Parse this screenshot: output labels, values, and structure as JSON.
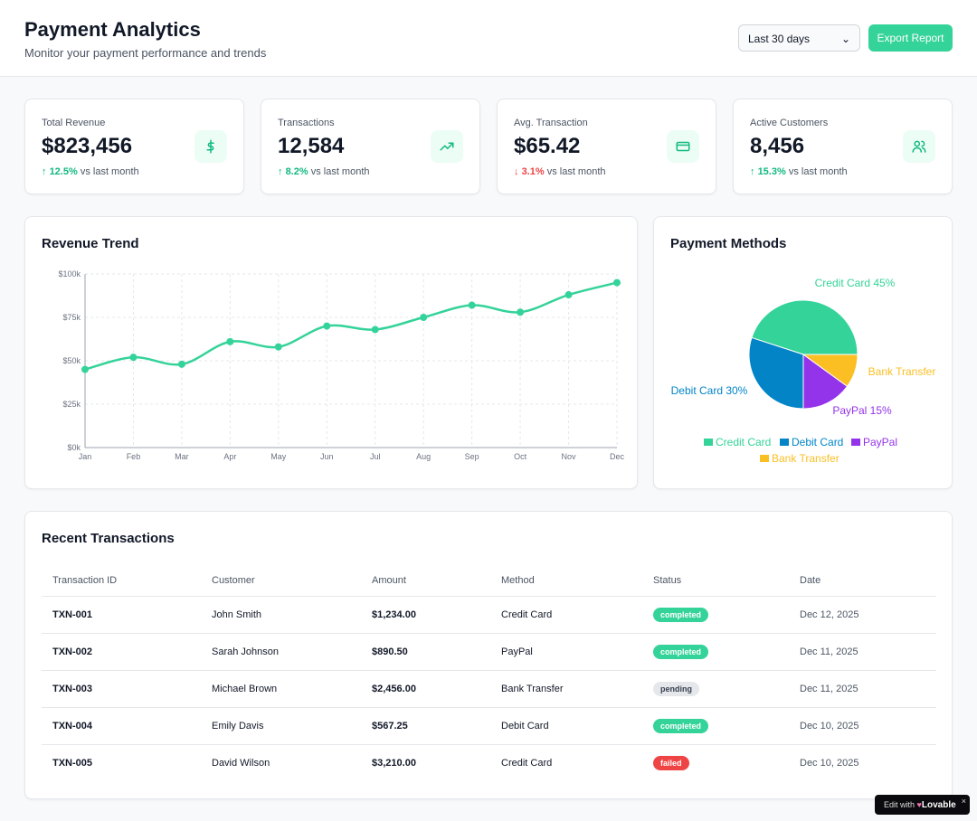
{
  "header": {
    "title": "Payment Analytics",
    "subtitle": "Monitor your payment performance and trends",
    "range": "Last 30 days",
    "export": "Export Report"
  },
  "stats": [
    {
      "label": "Total Revenue",
      "value": "$823,456",
      "change": "12.5%",
      "dir": "up",
      "suffix": "vs last month",
      "icon": "dollar-icon"
    },
    {
      "label": "Transactions",
      "value": "12,584",
      "change": "8.2%",
      "dir": "up",
      "suffix": "vs last month",
      "icon": "trending-up-icon"
    },
    {
      "label": "Avg. Transaction",
      "value": "$65.42",
      "change": "3.1%",
      "dir": "down",
      "suffix": "vs last month",
      "icon": "credit-card-icon"
    },
    {
      "label": "Active Customers",
      "value": "8,456",
      "change": "15.3%",
      "dir": "up",
      "suffix": "vs last month",
      "icon": "users-icon"
    }
  ],
  "colors": {
    "accent": "#34d399",
    "credit": "#34d399",
    "debit": "#0284c7",
    "paypal": "#9333ea",
    "bank": "#fbbf24"
  },
  "chart_data": [
    {
      "type": "line",
      "title": "Revenue Trend",
      "categories": [
        "Jan",
        "Feb",
        "Mar",
        "Apr",
        "May",
        "Jun",
        "Jul",
        "Aug",
        "Sep",
        "Oct",
        "Nov",
        "Dec"
      ],
      "values": [
        45000,
        52000,
        48000,
        61000,
        58000,
        70000,
        68000,
        75000,
        82000,
        78000,
        88000,
        95000
      ],
      "yticks": [
        "$0k",
        "$25k",
        "$50k",
        "$75k",
        "$100k"
      ],
      "ylim": [
        0,
        100000
      ],
      "grid": true
    },
    {
      "type": "pie",
      "title": "Payment Methods",
      "slices": [
        {
          "name": "Credit Card",
          "value": 45,
          "label": "Credit Card 45%"
        },
        {
          "name": "Debit Card",
          "value": 30,
          "label": "Debit Card 30%"
        },
        {
          "name": "PayPal",
          "value": 15,
          "label": "PayPal 15%"
        },
        {
          "name": "Bank Transfer",
          "value": 10,
          "label": "Bank Transfer"
        }
      ],
      "legend": "bottom"
    }
  ],
  "transactions": {
    "title": "Recent Transactions",
    "columns": [
      "Transaction ID",
      "Customer",
      "Amount",
      "Method",
      "Status",
      "Date"
    ],
    "rows": [
      [
        "TXN-001",
        "John Smith",
        "$1,234.00",
        "Credit Card",
        "completed",
        "Dec 12, 2025"
      ],
      [
        "TXN-002",
        "Sarah Johnson",
        "$890.50",
        "PayPal",
        "completed",
        "Dec 11, 2025"
      ],
      [
        "TXN-003",
        "Michael Brown",
        "$2,456.00",
        "Bank Transfer",
        "pending",
        "Dec 11, 2025"
      ],
      [
        "TXN-004",
        "Emily Davis",
        "$567.25",
        "Debit Card",
        "completed",
        "Dec 10, 2025"
      ],
      [
        "TXN-005",
        "David Wilson",
        "$3,210.00",
        "Credit Card",
        "failed",
        "Dec 10, 2025"
      ]
    ]
  },
  "badge": {
    "text": "Edit with",
    "brand": "Lovable",
    "close": "×"
  }
}
